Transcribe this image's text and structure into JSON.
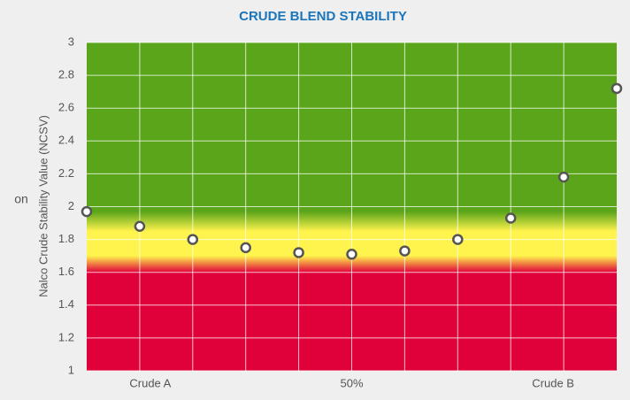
{
  "chart_data": {
    "type": "scatter",
    "title": "CRUDE BLEND STABILITY",
    "y_label": "Nalco Crude Stability Value (NCSV)",
    "annotation": "on",
    "x": [
      0,
      10,
      20,
      30,
      40,
      50,
      60,
      70,
      80,
      90,
      100
    ],
    "series": [
      {
        "name": "NCSV",
        "color": "#555555",
        "values": [
          1.97,
          1.88,
          1.8,
          1.75,
          1.72,
          1.71,
          1.73,
          1.8,
          1.93,
          2.18,
          2.72
        ]
      }
    ],
    "xlim": [
      0,
      100
    ],
    "xticks": [
      {
        "value": 12,
        "label": "Crude A"
      },
      {
        "value": 50,
        "label": "50%"
      },
      {
        "value": 88,
        "label": "Crude B"
      }
    ],
    "xgrid": [
      10,
      20,
      30,
      40,
      50,
      60,
      70,
      80,
      90
    ],
    "ylim": [
      1,
      3
    ],
    "yticks": [
      1,
      1.2,
      1.4,
      1.6,
      1.8,
      2,
      2.2,
      2.4,
      2.6,
      2.8,
      3
    ],
    "grid": true,
    "bands": [
      {
        "value": 1.6,
        "color": "#e0003a"
      },
      {
        "value": 1.7,
        "color": "#fff34d"
      },
      {
        "value": 1.85,
        "color": "#fff34d"
      },
      {
        "value": 1.97,
        "color": "#5aa51a"
      }
    ]
  }
}
